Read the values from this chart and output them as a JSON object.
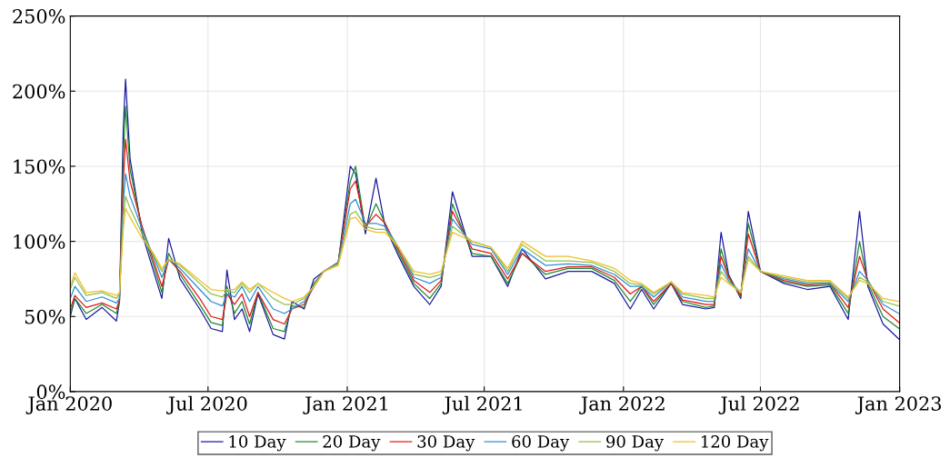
{
  "chart_data": {
    "type": "line",
    "x": [
      "2020-01-01",
      "2020-01-07",
      "2020-01-22",
      "2020-02-12",
      "2020-03-02",
      "2020-03-06",
      "2020-03-11",
      "2020-03-14",
      "2020-03-20",
      "2020-04-05",
      "2020-04-20",
      "2020-05-01",
      "2020-05-10",
      "2020-05-25",
      "2020-06-20",
      "2020-07-05",
      "2020-07-20",
      "2020-07-26",
      "2020-08-05",
      "2020-08-15",
      "2020-08-25",
      "2020-09-05",
      "2020-09-25",
      "2020-10-10",
      "2020-10-20",
      "2020-11-05",
      "2020-11-18",
      "2020-12-01",
      "2020-12-20",
      "2021-01-05",
      "2021-01-12",
      "2021-01-25",
      "2021-02-08",
      "2021-02-20",
      "2021-03-10",
      "2021-03-30",
      "2021-04-20",
      "2021-05-05",
      "2021-05-20",
      "2021-06-15",
      "2021-07-10",
      "2021-08-01",
      "2021-08-20",
      "2021-09-20",
      "2021-10-20",
      "2021-11-20",
      "2021-12-20",
      "2022-01-10",
      "2022-01-25",
      "2022-02-10",
      "2022-03-05",
      "2022-03-20",
      "2022-04-20",
      "2022-05-01",
      "2022-05-10",
      "2022-05-20",
      "2022-06-05",
      "2022-06-15",
      "2022-07-01",
      "2022-08-01",
      "2022-09-01",
      "2022-10-01",
      "2022-10-25",
      "2022-11-09",
      "2022-11-20",
      "2022-12-10",
      "2022-12-31"
    ],
    "series": [
      {
        "name": "10 Day",
        "color": "#1a1aa0",
        "values": [
          50,
          62,
          48,
          56,
          47,
          60,
          175,
          208,
          155,
          105,
          80,
          62,
          102,
          75,
          55,
          42,
          40,
          81,
          48,
          55,
          40,
          65,
          38,
          35,
          60,
          55,
          75,
          80,
          85,
          150,
          145,
          105,
          142,
          110,
          90,
          70,
          58,
          70,
          133,
          90,
          90,
          70,
          95,
          75,
          80,
          80,
          72,
          55,
          68,
          55,
          72,
          58,
          55,
          56,
          106,
          78,
          62,
          120,
          80,
          72,
          68,
          70,
          48,
          120,
          70,
          45,
          35
        ]
      },
      {
        "name": "20 Day",
        "color": "#1e8a2e",
        "values": [
          52,
          62,
          52,
          58,
          52,
          60,
          155,
          190,
          148,
          108,
          84,
          66,
          92,
          78,
          58,
          46,
          44,
          70,
          52,
          60,
          45,
          66,
          42,
          40,
          57,
          56,
          72,
          80,
          86,
          140,
          150,
          108,
          125,
          112,
          92,
          72,
          62,
          72,
          125,
          92,
          90,
          72,
          92,
          78,
          82,
          82,
          74,
          60,
          70,
          58,
          72,
          60,
          56,
          57,
          95,
          77,
          63,
          112,
          80,
          73,
          70,
          71,
          52,
          100,
          72,
          50,
          42
        ]
      },
      {
        "name": "30 Day",
        "color": "#e01818",
        "values": [
          55,
          64,
          56,
          59,
          55,
          61,
          140,
          168,
          140,
          110,
          87,
          70,
          88,
          80,
          62,
          50,
          48,
          65,
          58,
          65,
          50,
          66,
          48,
          45,
          55,
          58,
          70,
          80,
          86,
          135,
          140,
          110,
          118,
          112,
          94,
          74,
          66,
          74,
          120,
          95,
          92,
          75,
          92,
          80,
          83,
          83,
          76,
          65,
          70,
          60,
          72,
          61,
          58,
          58,
          90,
          76,
          64,
          105,
          80,
          74,
          71,
          72,
          56,
          90,
          74,
          55,
          46
        ]
      },
      {
        "name": "60 Day",
        "color": "#2a8fd6",
        "values": [
          62,
          70,
          60,
          63,
          59,
          62,
          125,
          145,
          130,
          108,
          90,
          76,
          88,
          82,
          68,
          60,
          57,
          65,
          63,
          70,
          60,
          70,
          55,
          52,
          55,
          60,
          70,
          80,
          86,
          125,
          128,
          112,
          112,
          110,
          96,
          76,
          72,
          76,
          115,
          98,
          95,
          78,
          95,
          84,
          85,
          84,
          78,
          70,
          70,
          63,
          73,
          63,
          60,
          60,
          85,
          74,
          66,
          95,
          80,
          75,
          72,
          72,
          60,
          80,
          74,
          58,
          52
        ]
      },
      {
        "name": "90 Day",
        "color": "#8fc04a",
        "values": [
          68,
          76,
          64,
          66,
          62,
          65,
          115,
          130,
          122,
          105,
          91,
          80,
          88,
          84,
          72,
          65,
          63,
          67,
          66,
          72,
          66,
          72,
          62,
          58,
          58,
          62,
          70,
          80,
          85,
          118,
          120,
          110,
          108,
          108,
          96,
          78,
          76,
          78,
          110,
          100,
          96,
          80,
          98,
          87,
          87,
          86,
          80,
          72,
          71,
          65,
          73,
          65,
          62,
          62,
          80,
          73,
          66,
          90,
          80,
          76,
          73,
          73,
          62,
          76,
          73,
          60,
          57
        ]
      },
      {
        "name": "120 Day",
        "color": "#f0be28",
        "values": [
          70,
          79,
          66,
          67,
          64,
          66,
          108,
          122,
          116,
          102,
          92,
          82,
          88,
          85,
          74,
          68,
          67,
          68,
          68,
          73,
          68,
          72,
          66,
          62,
          60,
          63,
          70,
          80,
          84,
          115,
          116,
          108,
          106,
          106,
          96,
          80,
          78,
          80,
          106,
          100,
          96,
          82,
          100,
          90,
          90,
          87,
          82,
          74,
          72,
          66,
          73,
          66,
          64,
          63,
          76,
          72,
          66,
          88,
          80,
          77,
          74,
          74,
          63,
          74,
          72,
          62,
          60
        ]
      }
    ],
    "xlim": [
      "2020-01-01",
      "2023-01-01"
    ],
    "xticks": [
      {
        "value": "2020-01-01",
        "label": "Jan 2020"
      },
      {
        "value": "2020-07-01",
        "label": "Jul 2020"
      },
      {
        "value": "2021-01-01",
        "label": "Jan 2021"
      },
      {
        "value": "2021-07-01",
        "label": "Jul 2021"
      },
      {
        "value": "2022-01-01",
        "label": "Jan 2022"
      },
      {
        "value": "2022-07-01",
        "label": "Jul 2022"
      },
      {
        "value": "2023-01-01",
        "label": "Jan 2023"
      }
    ],
    "ylim": [
      0,
      250
    ],
    "yticks": [
      {
        "value": 0,
        "label": "0%"
      },
      {
        "value": 50,
        "label": "50%"
      },
      {
        "value": 100,
        "label": "100%"
      },
      {
        "value": 150,
        "label": "150%"
      },
      {
        "value": 200,
        "label": "200%"
      },
      {
        "value": 250,
        "label": "250%"
      }
    ],
    "grid": true,
    "legend": "bottom"
  }
}
